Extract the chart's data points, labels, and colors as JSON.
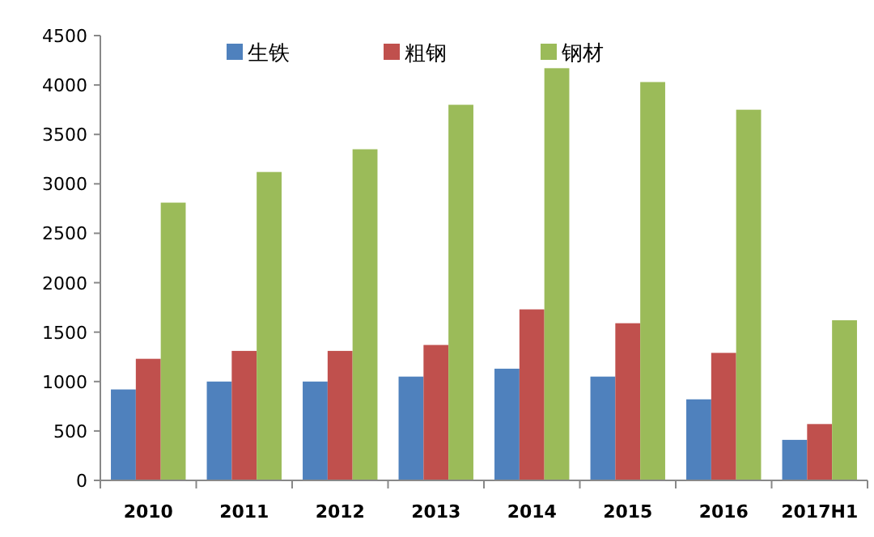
{
  "chart_data": {
    "type": "bar",
    "categories": [
      "2010",
      "2011",
      "2012",
      "2013",
      "2014",
      "2015",
      "2016",
      "2017H1"
    ],
    "series": [
      {
        "name": "生铁",
        "color": "#4f81bd",
        "values": [
          920,
          1000,
          1000,
          1050,
          1130,
          1050,
          820,
          410
        ]
      },
      {
        "name": "粗钢",
        "color": "#c0504d",
        "values": [
          1230,
          1310,
          1310,
          1370,
          1730,
          1590,
          1290,
          570
        ]
      },
      {
        "name": "钢材",
        "color": "#9bbb59",
        "values": [
          2810,
          3120,
          3350,
          3800,
          4170,
          4030,
          3750,
          1620
        ]
      }
    ],
    "ylim": [
      0,
      4500
    ],
    "yticks": [
      0,
      500,
      1000,
      1500,
      2000,
      2500,
      3000,
      3500,
      4000,
      4500
    ],
    "grid": false,
    "legend": "top"
  }
}
